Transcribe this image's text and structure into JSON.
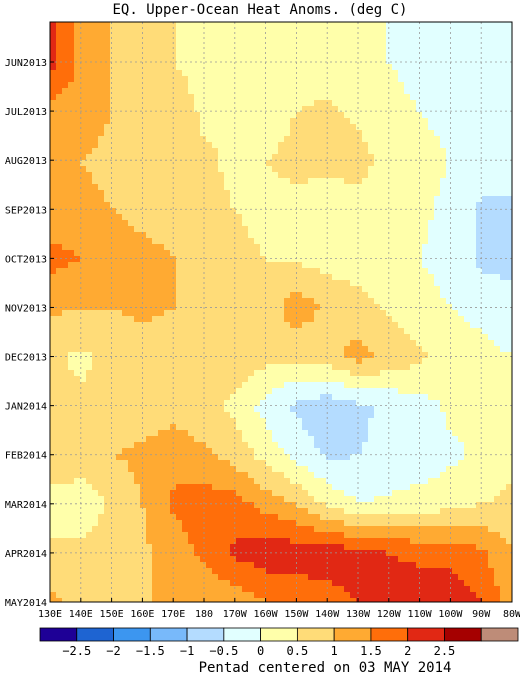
{
  "chart_data": {
    "type": "heatmap",
    "title": "EQ. Upper-Ocean Heat Anoms. (deg C)",
    "footer": "Pentad centered on 03 MAY 2014",
    "x_tick_labels": [
      "130E",
      "140E",
      "150E",
      "160E",
      "170E",
      "180",
      "170W",
      "160W",
      "150W",
      "140W",
      "130W",
      "120W",
      "110W",
      "100W",
      "90W",
      "80W"
    ],
    "y_tick_labels": [
      "JUN2013",
      "JUL2013",
      "AUG2013",
      "SEP2013",
      "OCT2013",
      "NOV2013",
      "DEC2013",
      "JAN2014",
      "FEB2014",
      "MAR2014",
      "APR2014",
      "MAY2014"
    ],
    "colorbar": {
      "levels": [
        "-2.5",
        "-2",
        "-1.5",
        "-1",
        "-0.5",
        "0",
        "0.5",
        "1",
        "1.5",
        "2",
        "2.5"
      ],
      "colors": [
        "#1e0096",
        "#1e64d2",
        "#3c96f0",
        "#78b9fa",
        "#b4dcff",
        "#e1ffff",
        "#ffffaa",
        "#ffdc78",
        "#ffaa32",
        "#ff6e0a",
        "#e12814",
        "#a50000",
        "#be8c78"
      ]
    },
    "grid": "dashed",
    "description_rows_longitude_degE": [
      130,
      140,
      150,
      160,
      170,
      180,
      190,
      200,
      210,
      220,
      230,
      240,
      250,
      260,
      270,
      280
    ],
    "anomaly_grid": {
      "note": "approximate anomaly (deg C) per month row (Jun2013..May2014) per longitude column (130E..80W)",
      "rows": [
        [
          2.2,
          1.4,
          1.0,
          0.8,
          0.5,
          0.3,
          0.3,
          0.3,
          0.2,
          0.2,
          0.2,
          0.0,
          -0.2,
          -0.3,
          -0.4,
          -0.5
        ],
        [
          1.3,
          1.2,
          1.0,
          0.9,
          0.8,
          0.4,
          0.4,
          0.3,
          0.5,
          0.6,
          0.4,
          0.2,
          0.0,
          -0.1,
          -0.3,
          -0.3
        ],
        [
          1.0,
          1.0,
          0.9,
          0.8,
          0.7,
          0.6,
          0.4,
          0.5,
          0.6,
          0.6,
          0.7,
          0.3,
          0.1,
          0.0,
          -0.2,
          -0.3
        ],
        [
          1.1,
          1.1,
          1.0,
          0.8,
          0.7,
          0.6,
          0.5,
          0.4,
          0.4,
          0.3,
          0.3,
          0.2,
          0.1,
          -0.1,
          -0.6,
          -0.6
        ],
        [
          1.7,
          1.5,
          1.3,
          1.2,
          1.0,
          0.8,
          0.6,
          0.5,
          0.4,
          0.3,
          0.2,
          0.1,
          0.0,
          -0.2,
          -0.6,
          -0.6
        ],
        [
          1.1,
          1.0,
          1.0,
          1.1,
          1.0,
          0.9,
          0.8,
          0.7,
          1.3,
          0.9,
          0.7,
          0.4,
          0.2,
          0.0,
          -0.2,
          -0.4
        ],
        [
          0.6,
          0.4,
          0.6,
          0.8,
          0.7,
          0.9,
          0.9,
          0.7,
          0.6,
          0.8,
          1.2,
          0.9,
          0.6,
          0.3,
          0.2,
          0.0
        ],
        [
          0.7,
          0.6,
          0.6,
          0.7,
          0.8,
          0.6,
          0.4,
          -0.2,
          -0.6,
          -0.8,
          -0.6,
          -0.4,
          -0.2,
          0.1,
          0.1,
          0.3
        ],
        [
          0.9,
          0.9,
          1.0,
          1.1,
          1.3,
          1.1,
          0.8,
          0.3,
          -0.2,
          -0.6,
          -0.5,
          -0.4,
          -0.3,
          -0.1,
          0.1,
          0.4
        ],
        [
          0.3,
          0.1,
          0.6,
          1.0,
          1.6,
          1.8,
          1.7,
          1.3,
          1.0,
          0.4,
          0.0,
          0.1,
          0.2,
          0.3,
          0.5,
          0.6
        ],
        [
          0.6,
          0.7,
          0.8,
          0.9,
          1.2,
          1.6,
          2.1,
          2.3,
          2.3,
          2.3,
          2.2,
          2.0,
          1.9,
          1.8,
          1.6,
          1.0
        ],
        [
          1.1,
          0.9,
          0.9,
          1.0,
          1.0,
          1.0,
          1.2,
          1.5,
          1.6,
          1.8,
          2.0,
          2.2,
          2.3,
          2.4,
          2.0,
          1.2
        ]
      ]
    }
  }
}
